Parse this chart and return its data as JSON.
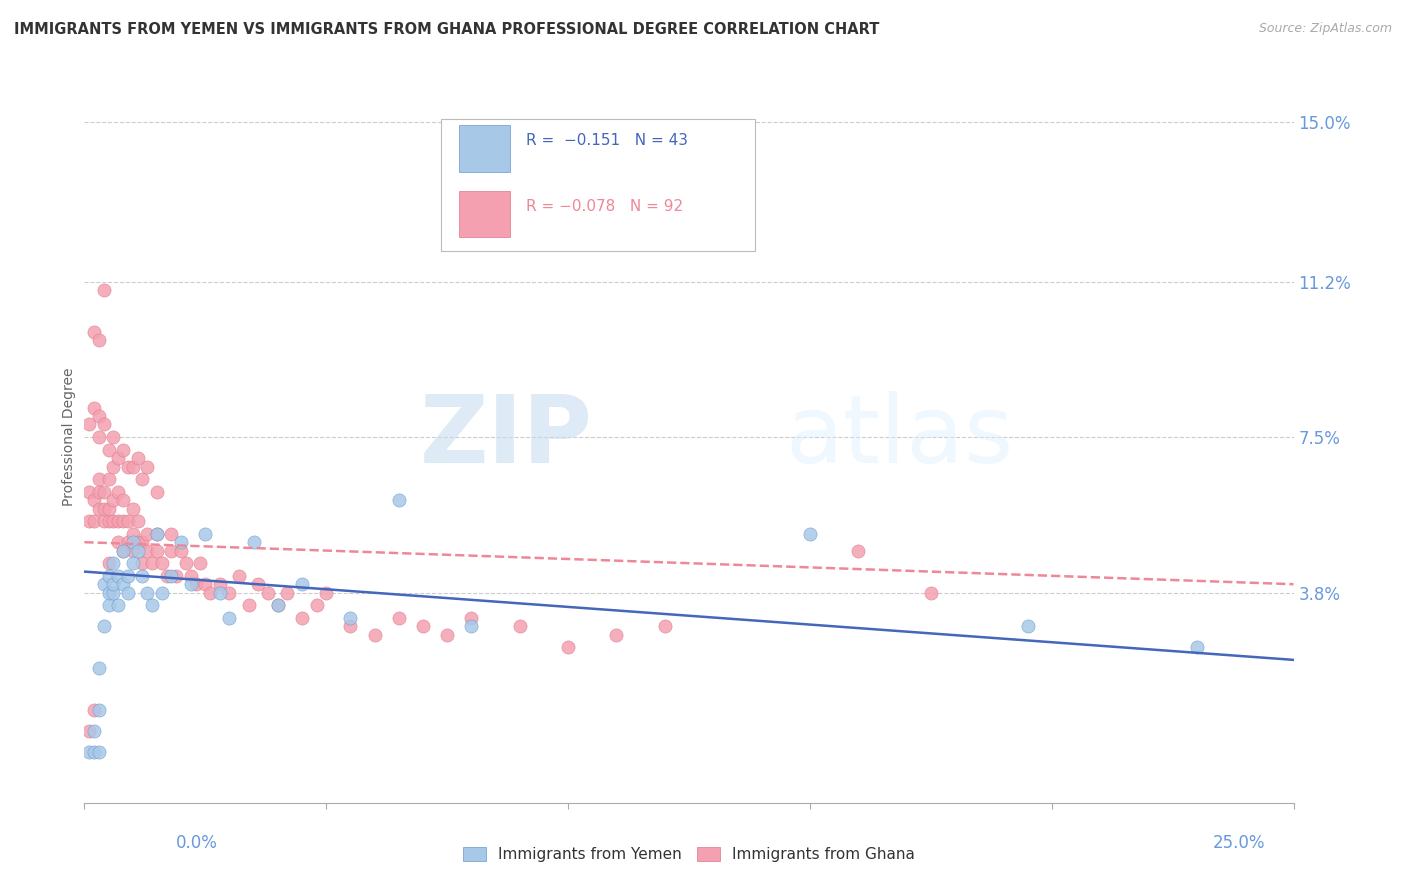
{
  "title": "IMMIGRANTS FROM YEMEN VS IMMIGRANTS FROM GHANA PROFESSIONAL DEGREE CORRELATION CHART",
  "source": "Source: ZipAtlas.com",
  "ylabel": "Professional Degree",
  "ytick_values": [
    0.0,
    0.038,
    0.075,
    0.112,
    0.15
  ],
  "ytick_labels": [
    "",
    "3.8%",
    "7.5%",
    "11.2%",
    "15.0%"
  ],
  "xlim": [
    0.0,
    0.25
  ],
  "ylim": [
    -0.012,
    0.162
  ],
  "background_color": "#ffffff",
  "grid_color": "#cccccc",
  "watermark_zip": "ZIP",
  "watermark_atlas": "atlas",
  "series1_name": "Immigrants from Yemen",
  "series2_name": "Immigrants from Ghana",
  "series1_color": "#a8c8e8",
  "series2_color": "#f4a0b0",
  "series1_edge_color": "#6699cc",
  "series2_edge_color": "#dd7788",
  "series1_line_color": "#4466bb",
  "series2_line_color": "#ee8899",
  "title_color": "#333333",
  "axis_label_color": "#6699dd",
  "source_color": "#aaaaaa",
  "legend_r1": "R =  −0.151   N = 43",
  "legend_r2": "R = −0.078   N = 92",
  "yemen_x": [
    0.001,
    0.002,
    0.002,
    0.003,
    0.003,
    0.003,
    0.004,
    0.004,
    0.005,
    0.005,
    0.005,
    0.006,
    0.006,
    0.006,
    0.007,
    0.007,
    0.008,
    0.008,
    0.009,
    0.009,
    0.01,
    0.01,
    0.011,
    0.012,
    0.013,
    0.014,
    0.015,
    0.016,
    0.018,
    0.02,
    0.022,
    0.025,
    0.028,
    0.03,
    0.035,
    0.04,
    0.045,
    0.055,
    0.065,
    0.08,
    0.15,
    0.195,
    0.23
  ],
  "yemen_y": [
    0.0,
    0.0,
    0.005,
    0.0,
    0.01,
    0.02,
    0.03,
    0.04,
    0.035,
    0.038,
    0.042,
    0.038,
    0.04,
    0.045,
    0.035,
    0.042,
    0.04,
    0.048,
    0.038,
    0.042,
    0.045,
    0.05,
    0.048,
    0.042,
    0.038,
    0.035,
    0.052,
    0.038,
    0.042,
    0.05,
    0.04,
    0.052,
    0.038,
    0.032,
    0.05,
    0.035,
    0.04,
    0.032,
    0.06,
    0.03,
    0.052,
    0.03,
    0.025
  ],
  "ghana_x": [
    0.001,
    0.001,
    0.002,
    0.002,
    0.003,
    0.003,
    0.003,
    0.004,
    0.004,
    0.004,
    0.005,
    0.005,
    0.005,
    0.005,
    0.006,
    0.006,
    0.006,
    0.007,
    0.007,
    0.007,
    0.008,
    0.008,
    0.008,
    0.009,
    0.009,
    0.01,
    0.01,
    0.01,
    0.011,
    0.011,
    0.012,
    0.012,
    0.013,
    0.013,
    0.014,
    0.015,
    0.015,
    0.016,
    0.017,
    0.018,
    0.018,
    0.019,
    0.02,
    0.021,
    0.022,
    0.023,
    0.024,
    0.025,
    0.026,
    0.028,
    0.03,
    0.032,
    0.034,
    0.036,
    0.038,
    0.04,
    0.042,
    0.045,
    0.048,
    0.05,
    0.055,
    0.06,
    0.065,
    0.07,
    0.075,
    0.08,
    0.09,
    0.1,
    0.11,
    0.12,
    0.001,
    0.002,
    0.003,
    0.003,
    0.004,
    0.005,
    0.006,
    0.007,
    0.008,
    0.009,
    0.01,
    0.011,
    0.012,
    0.013,
    0.015,
    0.002,
    0.003,
    0.004,
    0.16,
    0.175,
    0.002,
    0.001
  ],
  "ghana_y": [
    0.055,
    0.062,
    0.055,
    0.06,
    0.058,
    0.062,
    0.065,
    0.055,
    0.058,
    0.062,
    0.045,
    0.055,
    0.058,
    0.065,
    0.055,
    0.06,
    0.068,
    0.05,
    0.055,
    0.062,
    0.048,
    0.055,
    0.06,
    0.05,
    0.055,
    0.048,
    0.052,
    0.058,
    0.05,
    0.055,
    0.045,
    0.05,
    0.048,
    0.052,
    0.045,
    0.048,
    0.052,
    0.045,
    0.042,
    0.048,
    0.052,
    0.042,
    0.048,
    0.045,
    0.042,
    0.04,
    0.045,
    0.04,
    0.038,
    0.04,
    0.038,
    0.042,
    0.035,
    0.04,
    0.038,
    0.035,
    0.038,
    0.032,
    0.035,
    0.038,
    0.03,
    0.028,
    0.032,
    0.03,
    0.028,
    0.032,
    0.03,
    0.025,
    0.028,
    0.03,
    0.078,
    0.082,
    0.08,
    0.075,
    0.078,
    0.072,
    0.075,
    0.07,
    0.072,
    0.068,
    0.068,
    0.07,
    0.065,
    0.068,
    0.062,
    0.1,
    0.098,
    0.11,
    0.048,
    0.038,
    0.01,
    0.005
  ]
}
